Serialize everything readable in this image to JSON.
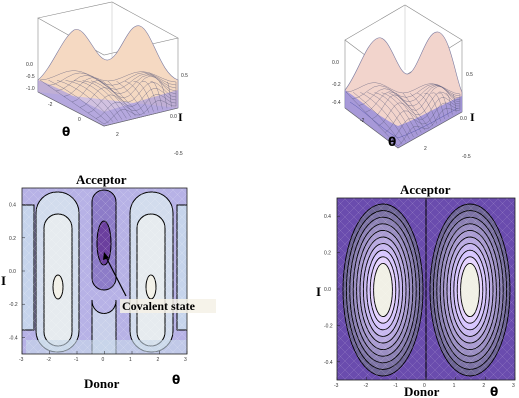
{
  "chart_data": [
    {
      "type": "surface",
      "panel": "top-left",
      "title": "",
      "xlabel": "θ",
      "ylabel": "I",
      "xlim": [
        -3.14,
        3.14
      ],
      "ylim": [
        -0.5,
        0.5
      ],
      "zlim": [
        -1.0,
        0.0
      ],
      "x_ticks": [
        "-2",
        "0",
        "2"
      ],
      "y_ticks": [
        "0.5",
        "0.0",
        "-0.5"
      ],
      "z_ticks": [
        "0.0",
        "-0.5",
        "-1.0"
      ],
      "grid": true
    },
    {
      "type": "surface",
      "panel": "top-right",
      "title": "",
      "xlabel": "θ",
      "ylabel": "I",
      "xlim": [
        -3.14,
        3.14
      ],
      "ylim": [
        -0.5,
        0.5
      ],
      "zlim": [
        -0.4,
        0.0
      ],
      "x_ticks": [
        "-2",
        "0",
        "2"
      ],
      "y_ticks": [
        "0.5",
        "0.0",
        "-0.5"
      ],
      "z_ticks": [
        "0.0",
        "-0.2",
        "-0.4"
      ],
      "grid": true
    },
    {
      "type": "contour",
      "panel": "bottom-left",
      "top_label": "Acceptor",
      "bottom_label": "Donor",
      "xlabel": "θ",
      "ylabel": "I",
      "xlim": [
        -3,
        3
      ],
      "ylim": [
        -0.5,
        0.5
      ],
      "x_ticks": [
        "-3",
        "-2",
        "-1",
        "0",
        "1",
        "2",
        "3"
      ],
      "y_ticks": [
        "0.4",
        "0.2",
        "0.0",
        "-0.2",
        "-0.4"
      ],
      "annotation": "Covalent state",
      "annotation_target": [
        0.2,
        0.1
      ]
    },
    {
      "type": "contour",
      "panel": "bottom-right",
      "top_label": "Acceptor",
      "bottom_label": "Donor",
      "xlabel": "θ",
      "ylabel": "I",
      "xlim": [
        -3,
        3
      ],
      "ylim": [
        -0.5,
        0.5
      ],
      "x_ticks": [
        "-3",
        "-2",
        "-1",
        "0",
        "1",
        "2",
        "3"
      ],
      "y_ticks": [
        "0.4",
        "0.2",
        "0.0",
        "-0.2",
        "-0.4"
      ]
    }
  ],
  "colors": {
    "surface_light": "#f6dcc4",
    "surface_mid": "#cfc0ea",
    "surface_dark": "#7a6fd0",
    "contour_light": "#efeee6",
    "contour_mid": "#c7d3ec",
    "contour_dark": "#6e4fb3",
    "contour_deep": "#4b2c8a"
  }
}
